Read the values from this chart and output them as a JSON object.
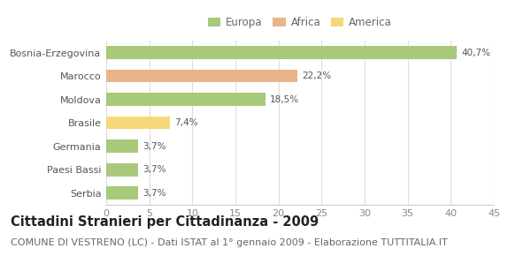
{
  "categories": [
    "Bosnia-Erzegovina",
    "Marocco",
    "Moldova",
    "Brasile",
    "Germania",
    "Paesi Bassi",
    "Serbia"
  ],
  "values": [
    40.7,
    22.2,
    18.5,
    7.4,
    3.7,
    3.7,
    3.7
  ],
  "labels": [
    "40,7%",
    "22,2%",
    "18,5%",
    "7,4%",
    "3,7%",
    "3,7%",
    "3,7%"
  ],
  "colors": [
    "#a8c87a",
    "#e8b48a",
    "#a8c87a",
    "#f5d87a",
    "#a8c87a",
    "#a8c87a",
    "#a8c87a"
  ],
  "legend_labels": [
    "Europa",
    "Africa",
    "America"
  ],
  "legend_colors": [
    "#a8c87a",
    "#e8b48a",
    "#f5d87a"
  ],
  "title": "Cittadini Stranieri per Cittadinanza - 2009",
  "subtitle": "COMUNE DI VESTRENO (LC) - Dati ISTAT al 1° gennaio 2009 - Elaborazione TUTTITALIA.IT",
  "xlim": [
    0,
    45
  ],
  "xticks": [
    0,
    5,
    10,
    15,
    20,
    25,
    30,
    35,
    40,
    45
  ],
  "background_color": "#ffffff",
  "bar_height": 0.55,
  "title_fontsize": 10.5,
  "subtitle_fontsize": 8,
  "label_fontsize": 7.5,
  "ytick_fontsize": 8,
  "xtick_fontsize": 8,
  "legend_fontsize": 8.5
}
